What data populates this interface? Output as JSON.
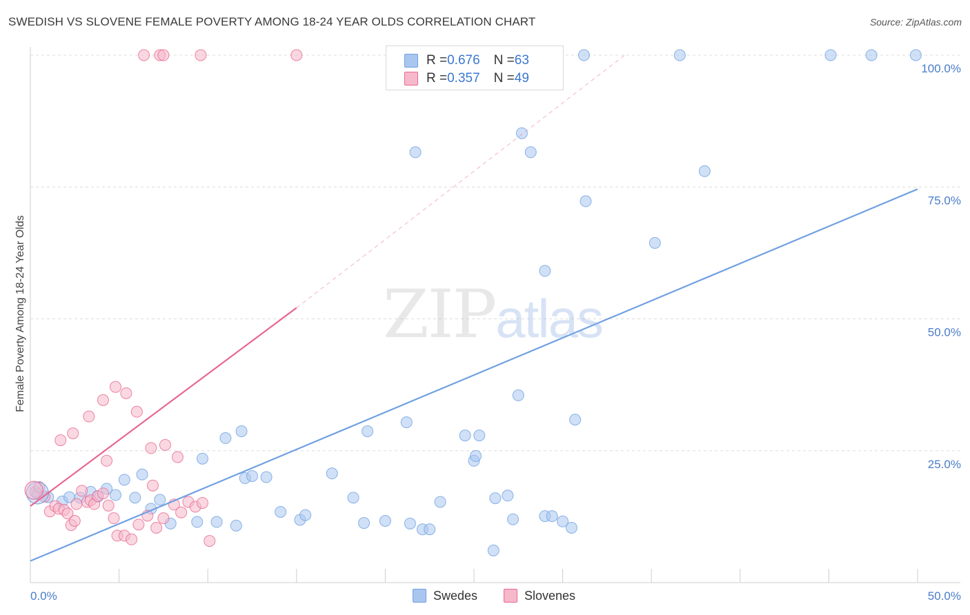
{
  "title": "SWEDISH VS SLOVENE FEMALE POVERTY AMONG 18-24 YEAR OLDS CORRELATION CHART",
  "source": "Source: ZipAtlas.com",
  "watermark": {
    "zip": "ZIP",
    "atlas": "atlas"
  },
  "legend": {
    "rows": [
      {
        "r_label": "R = ",
        "r_value": "0.676",
        "n_label": "N = ",
        "n_value": "63",
        "color": "#a9c6ef"
      },
      {
        "r_label": "R = ",
        "r_value": "0.357",
        "n_label": "N = ",
        "n_value": "49",
        "color": "#f6b8cb"
      }
    ]
  },
  "bottom_legend": [
    {
      "label": "Swedes",
      "color": "#a9c6ef"
    },
    {
      "label": "Slovenes",
      "color": "#f6b8cb"
    }
  ],
  "chart_data": {
    "type": "scatter",
    "title": "SWEDISH VS SLOVENE FEMALE POVERTY AMONG 18-24 YEAR OLDS CORRELATION CHART",
    "xlabel": "",
    "ylabel": "Female Poverty Among 18-24 Year Olds",
    "xlim": [
      0,
      50
    ],
    "ylim": [
      0,
      100
    ],
    "x_tick_labels": [
      "0.0%",
      "50.0%"
    ],
    "y_ticks": [
      25,
      50,
      75,
      100
    ],
    "y_tick_labels": [
      "25.0%",
      "50.0%",
      "75.0%",
      "100.0%"
    ],
    "grid": true,
    "legend_placement": "top-center",
    "series": [
      {
        "name": "Swedes",
        "color": "#6fa0e2",
        "fill": "#a9c6ef",
        "trend": {
          "x": [
            0,
            50
          ],
          "y": [
            4.1,
            74.6
          ],
          "dashed_extension": false
        },
        "points": [
          [
            0.4,
            16.8
          ],
          [
            1.0,
            16.2
          ],
          [
            1.8,
            15.4
          ],
          [
            2.2,
            16.2
          ],
          [
            2.8,
            16.1
          ],
          [
            3.4,
            17.2
          ],
          [
            3.8,
            16.3
          ],
          [
            4.3,
            17.8
          ],
          [
            4.8,
            16.6
          ],
          [
            5.3,
            19.5
          ],
          [
            5.9,
            16.1
          ],
          [
            6.3,
            20.5
          ],
          [
            6.8,
            14.0
          ],
          [
            7.3,
            15.7
          ],
          [
            7.9,
            11.2
          ],
          [
            9.4,
            11.5
          ],
          [
            9.7,
            23.5
          ],
          [
            10.5,
            11.5
          ],
          [
            11.0,
            27.4
          ],
          [
            11.6,
            10.8
          ],
          [
            11.9,
            28.7
          ],
          [
            12.1,
            19.8
          ],
          [
            12.5,
            20.2
          ],
          [
            13.3,
            20.0
          ],
          [
            14.1,
            13.4
          ],
          [
            15.2,
            11.9
          ],
          [
            15.5,
            12.8
          ],
          [
            17.0,
            20.7
          ],
          [
            18.2,
            16.1
          ],
          [
            19.0,
            28.7
          ],
          [
            18.8,
            11.3
          ],
          [
            20.0,
            11.7
          ],
          [
            21.2,
            30.4
          ],
          [
            21.4,
            11.2
          ],
          [
            22.1,
            10.1
          ],
          [
            22.5,
            10.1
          ],
          [
            23.1,
            15.3
          ],
          [
            24.5,
            27.9
          ],
          [
            25.0,
            23.1
          ],
          [
            25.1,
            24.0
          ],
          [
            25.3,
            27.9
          ],
          [
            26.1,
            6.1
          ],
          [
            26.2,
            16.0
          ],
          [
            26.9,
            16.5
          ],
          [
            27.2,
            12.0
          ],
          [
            27.5,
            35.5
          ],
          [
            29.0,
            12.6
          ],
          [
            29.4,
            12.6
          ],
          [
            30.0,
            11.6
          ],
          [
            30.5,
            10.4
          ],
          [
            30.7,
            30.9
          ],
          [
            27.7,
            85.2
          ],
          [
            28.2,
            81.6
          ],
          [
            31.3,
            72.3
          ],
          [
            29.0,
            59.1
          ],
          [
            35.2,
            64.4
          ],
          [
            21.7,
            81.6
          ],
          [
            36.6,
            100.0
          ],
          [
            38.0,
            78.0
          ],
          [
            45.1,
            100.0
          ],
          [
            47.4,
            100.0
          ],
          [
            49.9,
            100.0
          ],
          [
            31.2,
            100.0
          ]
        ]
      },
      {
        "name": "Slovenes",
        "color": "#e8678f",
        "fill": "#f6b8cb",
        "trend": {
          "x": [
            0,
            15
          ],
          "y": [
            14.5,
            52.1
          ],
          "dashed_extension": true,
          "dashed_to": [
            33.5,
            100.0
          ]
        },
        "points": [
          [
            0.3,
            17.2
          ],
          [
            0.5,
            18.1
          ],
          [
            0.8,
            16.3
          ],
          [
            1.1,
            13.5
          ],
          [
            1.4,
            14.5
          ],
          [
            1.6,
            14.0
          ],
          [
            1.9,
            13.8
          ],
          [
            2.1,
            13.1
          ],
          [
            2.3,
            10.9
          ],
          [
            2.5,
            11.7
          ],
          [
            2.6,
            14.9
          ],
          [
            2.9,
            17.4
          ],
          [
            3.2,
            15.3
          ],
          [
            3.4,
            15.6
          ],
          [
            3.6,
            14.9
          ],
          [
            3.8,
            16.4
          ],
          [
            4.1,
            16.9
          ],
          [
            4.4,
            14.6
          ],
          [
            4.7,
            12.2
          ],
          [
            4.9,
            8.9
          ],
          [
            5.3,
            8.9
          ],
          [
            5.7,
            8.2
          ],
          [
            6.1,
            11.0
          ],
          [
            6.6,
            12.7
          ],
          [
            7.1,
            10.4
          ],
          [
            7.5,
            12.2
          ],
          [
            8.1,
            14.8
          ],
          [
            8.5,
            13.3
          ],
          [
            8.9,
            15.3
          ],
          [
            9.3,
            14.4
          ],
          [
            9.7,
            15.1
          ],
          [
            10.1,
            7.9
          ],
          [
            1.7,
            27.0
          ],
          [
            2.4,
            28.3
          ],
          [
            3.3,
            31.5
          ],
          [
            4.1,
            34.6
          ],
          [
            4.8,
            37.1
          ],
          [
            5.4,
            35.9
          ],
          [
            6.0,
            32.4
          ],
          [
            6.8,
            25.5
          ],
          [
            7.6,
            26.1
          ],
          [
            8.3,
            23.8
          ],
          [
            6.4,
            100.0
          ],
          [
            7.3,
            100.0
          ],
          [
            7.5,
            100.0
          ],
          [
            15.0,
            100.0
          ],
          [
            9.6,
            100.0
          ],
          [
            4.3,
            23.1
          ],
          [
            6.9,
            18.4
          ]
        ]
      }
    ]
  }
}
